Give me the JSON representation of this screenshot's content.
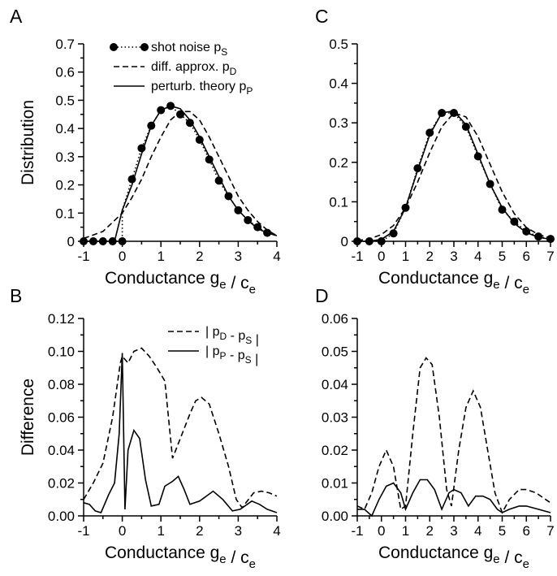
{
  "panel_labels": [
    "A",
    "B",
    "C",
    "D"
  ],
  "chart_data": [
    {
      "panel": "A",
      "type": "line",
      "xlabel": "Conductance g_e / c_e",
      "ylabel": "Distribution",
      "xlim": [
        -1,
        4
      ],
      "ylim": [
        0,
        0.7
      ],
      "xticks": [
        "-1",
        "0",
        "1",
        "2",
        "3",
        "4"
      ],
      "yticks": [
        "0",
        "0.1",
        "0.2",
        "0.3",
        "0.4",
        "0.5",
        "0.6",
        "0.7"
      ],
      "legend": {
        "placement": "top-right",
        "entries": [
          {
            "main": "shot noise p",
            "sub": "S",
            "style": "dotted-marker"
          },
          {
            "main": "diff. approx. p",
            "sub": "D",
            "style": "dashed"
          },
          {
            "main": "perturb. theory p",
            "sub": "P",
            "style": "solid"
          }
        ]
      },
      "series": [
        {
          "name": "shot noise p_S",
          "style": "dotted-marker",
          "x": [
            -1,
            -0.75,
            -0.5,
            -0.25,
            0,
            0,
            0.25,
            0.5,
            0.75,
            1,
            1.25,
            1.5,
            1.75,
            2,
            2.25,
            2.5,
            2.75,
            3,
            3.25,
            3.5,
            3.75,
            4
          ],
          "y": [
            0,
            0,
            0,
            0,
            0,
            0.11,
            0.22,
            0.33,
            0.41,
            0.465,
            0.48,
            0.45,
            0.42,
            0.36,
            0.29,
            0.215,
            0.16,
            0.11,
            0.075,
            0.05,
            0.03,
            0.02
          ],
          "marker_x": [
            -1,
            -0.75,
            -0.5,
            -0.25,
            0,
            0.25,
            0.5,
            0.75,
            1,
            1.25,
            1.5,
            1.75,
            2,
            2.25,
            2.5,
            2.75,
            3,
            3.25,
            3.5,
            3.75
          ],
          "marker_y": [
            0,
            0,
            0,
            0,
            0,
            0.22,
            0.33,
            0.41,
            0.465,
            0.48,
            0.45,
            0.42,
            0.36,
            0.29,
            0.215,
            0.16,
            0.11,
            0.075,
            0.05,
            0.03
          ]
        },
        {
          "name": "diff. approx. p_D",
          "style": "dashed",
          "x": [
            -1,
            -0.5,
            0,
            0.25,
            0.5,
            0.75,
            1,
            1.25,
            1.5,
            1.75,
            2,
            2.25,
            2.5,
            2.75,
            3,
            3.25,
            3.5,
            3.75,
            4
          ],
          "y": [
            0.01,
            0.035,
            0.1,
            0.155,
            0.22,
            0.3,
            0.37,
            0.43,
            0.46,
            0.46,
            0.43,
            0.37,
            0.3,
            0.23,
            0.16,
            0.11,
            0.07,
            0.04,
            0.02
          ]
        },
        {
          "name": "perturb. theory p_P",
          "style": "solid",
          "x": [
            -1,
            -0.5,
            -0.2,
            0,
            0.25,
            0.5,
            0.75,
            1,
            1.25,
            1.5,
            1.75,
            2,
            2.25,
            2.5,
            2.75,
            3,
            3.25,
            3.5,
            3.75,
            4
          ],
          "y": [
            0,
            0,
            0,
            0.11,
            0.2,
            0.31,
            0.41,
            0.465,
            0.48,
            0.47,
            0.43,
            0.37,
            0.3,
            0.23,
            0.16,
            0.11,
            0.075,
            0.045,
            0.03,
            0.02
          ]
        }
      ]
    },
    {
      "panel": "B",
      "type": "line",
      "xlabel": "Conductance g_e / c_e",
      "ylabel": "Difference",
      "xlim": [
        -1,
        4
      ],
      "ylim": [
        0,
        0.12
      ],
      "xticks": [
        "-1",
        "0",
        "1",
        "2",
        "3",
        "4"
      ],
      "yticks": [
        "0.00",
        "0.02",
        "0.04",
        "0.06",
        "0.08",
        "0.10",
        "0.12"
      ],
      "legend": {
        "placement": "top-right",
        "entries": [
          {
            "main": "| p",
            "sub": "D",
            "mid": " - p",
            "sub2": "S",
            "end": " |",
            "style": "dashed"
          },
          {
            "main": "| p",
            "sub": "P",
            "mid": " - p",
            "sub2": "S",
            "end": " |",
            "style": "solid"
          }
        ]
      },
      "series": [
        {
          "name": "| p_D - p_S |",
          "style": "dashed",
          "x": [
            -1,
            -0.75,
            -0.5,
            -0.25,
            -0.05,
            0,
            0.15,
            0.3,
            0.5,
            0.7,
            0.9,
            1.1,
            1.3,
            1.55,
            1.75,
            1.9,
            2.05,
            2.25,
            2.5,
            2.75,
            2.95,
            3.1,
            3.4,
            3.6,
            3.8,
            4
          ],
          "y": [
            0.01,
            0.02,
            0.032,
            0.06,
            0.093,
            0.097,
            0.093,
            0.1,
            0.102,
            0.097,
            0.09,
            0.082,
            0.035,
            0.05,
            0.062,
            0.07,
            0.072,
            0.068,
            0.05,
            0.03,
            0.01,
            0.005,
            0.014,
            0.015,
            0.014,
            0.012
          ]
        },
        {
          "name": "| p_P - p_S |",
          "style": "solid",
          "x": [
            -1,
            -0.85,
            -0.7,
            -0.55,
            -0.35,
            -0.2,
            -0.08,
            0,
            0.07,
            0.15,
            0.3,
            0.45,
            0.6,
            0.75,
            0.95,
            1.1,
            1.3,
            1.45,
            1.6,
            1.75,
            2,
            2.35,
            2.6,
            2.85,
            3.05,
            3.35,
            3.55,
            3.75,
            4
          ],
          "y": [
            0.008,
            0.007,
            0.003,
            0.002,
            0.013,
            0.02,
            0.05,
            0.099,
            0.004,
            0.04,
            0.052,
            0.047,
            0.022,
            0.006,
            0.007,
            0.018,
            0.021,
            0.024,
            0.016,
            0.007,
            0.009,
            0.015,
            0.01,
            0.003,
            0.004,
            0.009,
            0.007,
            0.004,
            0.002
          ]
        }
      ]
    },
    {
      "panel": "C",
      "type": "line",
      "xlabel": "Conductance g_e / c_e",
      "ylabel": "",
      "xlim": [
        -1,
        7
      ],
      "ylim": [
        0,
        0.5
      ],
      "xticks": [
        "-1",
        "0",
        "1",
        "2",
        "3",
        "4",
        "5",
        "6",
        "7"
      ],
      "yticks": [
        "0",
        "0.1",
        "0.2",
        "0.3",
        "0.4",
        "0.5"
      ],
      "series": [
        {
          "name": "shot noise p_S",
          "style": "dotted-marker",
          "x": [
            -1,
            -0.5,
            0,
            0.5,
            1,
            1.5,
            2,
            2.5,
            3,
            3.5,
            4,
            4.5,
            5,
            5.5,
            6,
            6.5,
            7
          ],
          "y": [
            0,
            0,
            0,
            0.02,
            0.085,
            0.185,
            0.275,
            0.325,
            0.325,
            0.29,
            0.215,
            0.145,
            0.08,
            0.05,
            0.025,
            0.012,
            0.006
          ],
          "marker_x": [
            -1,
            -0.5,
            0,
            0.5,
            1,
            1.5,
            2,
            2.5,
            3,
            3.5,
            4,
            4.5,
            5,
            5.5,
            6,
            6.5,
            7
          ],
          "marker_y": [
            0,
            0,
            0,
            0.02,
            0.085,
            0.185,
            0.275,
            0.325,
            0.325,
            0.29,
            0.215,
            0.145,
            0.08,
            0.05,
            0.025,
            0.012,
            0.006
          ]
        },
        {
          "name": "diff. approx. p_D",
          "style": "dashed",
          "x": [
            -1,
            -0.5,
            0,
            0.5,
            1,
            1.5,
            2,
            2.5,
            3,
            3.5,
            4,
            4.5,
            5,
            5.5,
            6,
            6.5,
            7
          ],
          "y": [
            0.002,
            0.006,
            0.017,
            0.04,
            0.085,
            0.15,
            0.225,
            0.29,
            0.325,
            0.315,
            0.265,
            0.195,
            0.125,
            0.07,
            0.035,
            0.017,
            0.008
          ]
        },
        {
          "name": "perturb. theory p_P",
          "style": "solid",
          "x": [
            -1,
            -0.5,
            0,
            0.5,
            1,
            1.5,
            2,
            2.5,
            3,
            3.5,
            4,
            4.5,
            5,
            5.5,
            6,
            6.5,
            7
          ],
          "y": [
            0,
            0,
            0.005,
            0.025,
            0.085,
            0.18,
            0.27,
            0.325,
            0.33,
            0.295,
            0.22,
            0.145,
            0.085,
            0.045,
            0.022,
            0.01,
            0.005
          ]
        }
      ]
    },
    {
      "panel": "D",
      "type": "line",
      "xlabel": "Conductance g_e / c_e",
      "ylabel": "",
      "xlim": [
        -1,
        7
      ],
      "ylim": [
        0,
        0.06
      ],
      "xticks": [
        "-1",
        "0",
        "1",
        "2",
        "3",
        "4",
        "5",
        "6",
        "7"
      ],
      "yticks": [
        "0.00",
        "0.01",
        "0.02",
        "0.03",
        "0.04",
        "0.05",
        "0.06"
      ],
      "series": [
        {
          "name": "| p_D - p_S |",
          "style": "dashed",
          "x": [
            -1,
            -0.7,
            -0.4,
            -0.1,
            0.2,
            0.5,
            0.8,
            1,
            1.3,
            1.6,
            1.85,
            2.1,
            2.4,
            2.7,
            2.9,
            3.2,
            3.5,
            3.8,
            4.1,
            4.4,
            4.7,
            5,
            5.3,
            5.7,
            6,
            6.4,
            6.8,
            7
          ],
          "y": [
            0.003,
            0.002,
            0.007,
            0.015,
            0.02,
            0.015,
            0.002,
            0.003,
            0.025,
            0.045,
            0.048,
            0.046,
            0.03,
            0.008,
            0.003,
            0.02,
            0.033,
            0.038,
            0.033,
            0.02,
            0.007,
            0.001,
            0.005,
            0.008,
            0.008,
            0.007,
            0.005,
            0.004
          ]
        },
        {
          "name": "| p_P - p_S |",
          "style": "solid",
          "x": [
            -1,
            -0.7,
            -0.4,
            -0.1,
            0.2,
            0.5,
            0.8,
            1,
            1.3,
            1.6,
            1.9,
            2.2,
            2.5,
            2.8,
            3,
            3.3,
            3.6,
            3.9,
            4.2,
            4.5,
            4.8,
            5,
            5.3,
            5.7,
            6,
            6.5,
            7
          ],
          "y": [
            0.002,
            0.002,
            0,
            0.005,
            0.009,
            0.01,
            0.007,
            0.002,
            0.007,
            0.011,
            0.011,
            0.008,
            0.002,
            0.007,
            0.008,
            0.007,
            0.003,
            0.006,
            0.006,
            0.005,
            0.002,
            0.001,
            0.002,
            0.003,
            0.003,
            0.002,
            0.001
          ]
        }
      ]
    }
  ]
}
